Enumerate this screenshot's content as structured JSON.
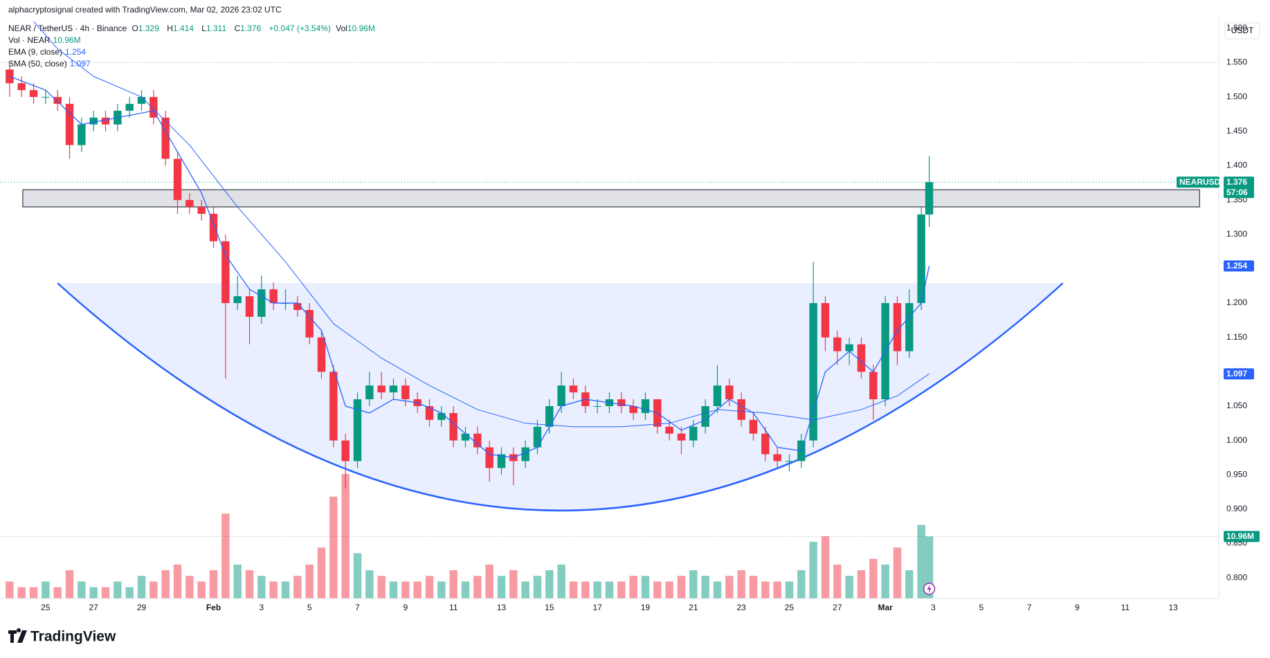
{
  "header": {
    "credit": "alphacryptosignal created with TradingView.com, Mar 02, 2026 23:02 UTC",
    "symbol": "NEAR / TetherUS · 4h · Binance",
    "ohlc": [
      {
        "k": "O",
        "v": "1.329"
      },
      {
        "k": "H",
        "v": "1.414"
      },
      {
        "k": "L",
        "v": "1.311"
      },
      {
        "k": "C",
        "v": "1.376"
      }
    ],
    "change": "+0.047 (+3.54%)",
    "vol": {
      "k": "Vol · NEAR",
      "v": "10.96M"
    },
    "vol_short": {
      "k": "Vol",
      "v": "10.96M"
    },
    "ema": {
      "k": "EMA (9, close)",
      "v": "1.254"
    },
    "sma": {
      "k": "SMA (50, close)",
      "v": "1.097"
    },
    "quote": "USDT",
    "ticker": "NEARUSDT",
    "countdown": "57:06",
    "logo": "TradingView"
  },
  "chart_data": {
    "type": "candlestick",
    "up_color": "#089981",
    "down_color": "#f23645",
    "grid": false,
    "xlim": [
      23.1,
      73.9
    ],
    "ylim": [
      0.77,
      1.615
    ],
    "vlim": [
      0,
      22
    ],
    "yticks": [
      {
        "value": 0.8,
        "label": "0.800"
      },
      {
        "value": 0.85,
        "label": "0.850"
      },
      {
        "value": 0.9,
        "label": "0.900"
      },
      {
        "value": 0.95,
        "label": "0.950"
      },
      {
        "value": 1.0,
        "label": "1.000"
      },
      {
        "value": 1.05,
        "label": "1.050"
      },
      {
        "value": 1.1,
        "label": "1.100"
      },
      {
        "value": 1.15,
        "label": "1.150"
      },
      {
        "value": 1.2,
        "label": "1.200"
      },
      {
        "value": 1.25,
        "label": "1.250"
      },
      {
        "value": 1.3,
        "label": "1.300"
      },
      {
        "value": 1.35,
        "label": "1.350"
      },
      {
        "value": 1.4,
        "label": "1.400"
      },
      {
        "value": 1.45,
        "label": "1.450"
      },
      {
        "value": 1.5,
        "label": "1.500"
      },
      {
        "value": 1.55,
        "label": "1.550"
      },
      {
        "value": 1.6,
        "label": "1.600"
      }
    ],
    "xticks": [
      25,
      27,
      29,
      {
        "value": 32,
        "label": "Feb"
      },
      {
        "value": 34,
        "label": "3"
      },
      {
        "value": 36,
        "label": "5"
      },
      {
        "value": 38,
        "label": "7"
      },
      {
        "value": 40,
        "label": "9"
      },
      {
        "value": 42,
        "label": "11"
      },
      {
        "value": 44,
        "label": "13"
      },
      {
        "value": 46,
        "label": "15"
      },
      {
        "value": 48,
        "label": "17"
      },
      {
        "value": 50,
        "label": "19"
      },
      {
        "value": 52,
        "label": "21"
      },
      {
        "value": 54,
        "label": "23"
      },
      {
        "value": 56,
        "label": "25"
      },
      {
        "value": 58,
        "label": "27"
      },
      {
        "value": 60,
        "label": "Mar"
      },
      {
        "value": 62,
        "label": "3"
      },
      {
        "value": 64,
        "label": "5"
      },
      {
        "value": 66,
        "label": "7"
      },
      {
        "value": 68,
        "label": "9"
      },
      {
        "value": 70,
        "label": "11"
      },
      {
        "value": 72,
        "label": "13"
      }
    ],
    "x": [
      23.5,
      24,
      24.5,
      25,
      25.5,
      26,
      26.5,
      27,
      27.5,
      28,
      28.5,
      29,
      29.5,
      30,
      30.5,
      31,
      31.5,
      32,
      32.5,
      33,
      33.5,
      34,
      34.5,
      35,
      35.5,
      36,
      36.5,
      37,
      37.5,
      38,
      38.5,
      39,
      39.5,
      40,
      40.5,
      41,
      41.5,
      42,
      42.5,
      43,
      43.5,
      44,
      44.5,
      45,
      45.5,
      46,
      46.5,
      47,
      47.5,
      48,
      48.5,
      49,
      49.5,
      50,
      50.5,
      51,
      51.5,
      52,
      52.5,
      53,
      53.5,
      54,
      54.5,
      55,
      55.5,
      56,
      56.5,
      57,
      57.5,
      58,
      58.5,
      59,
      59.5,
      60,
      60.5,
      61,
      61.5,
      61.83
    ],
    "ohlc": [
      [
        1.54,
        1.55,
        1.5,
        1.52
      ],
      [
        1.52,
        1.53,
        1.5,
        1.51
      ],
      [
        1.51,
        1.52,
        1.49,
        1.5
      ],
      [
        1.5,
        1.51,
        1.49,
        1.5
      ],
      [
        1.5,
        1.51,
        1.48,
        1.49
      ],
      [
        1.49,
        1.5,
        1.41,
        1.43
      ],
      [
        1.43,
        1.47,
        1.42,
        1.46
      ],
      [
        1.46,
        1.48,
        1.45,
        1.47
      ],
      [
        1.47,
        1.48,
        1.45,
        1.46
      ],
      [
        1.46,
        1.49,
        1.45,
        1.48
      ],
      [
        1.48,
        1.5,
        1.47,
        1.49
      ],
      [
        1.49,
        1.51,
        1.48,
        1.5
      ],
      [
        1.5,
        1.51,
        1.46,
        1.47
      ],
      [
        1.47,
        1.48,
        1.4,
        1.41
      ],
      [
        1.41,
        1.42,
        1.33,
        1.35
      ],
      [
        1.35,
        1.36,
        1.33,
        1.34
      ],
      [
        1.34,
        1.35,
        1.32,
        1.33
      ],
      [
        1.33,
        1.34,
        1.28,
        1.29
      ],
      [
        1.29,
        1.3,
        1.09,
        1.2
      ],
      [
        1.2,
        1.24,
        1.19,
        1.21
      ],
      [
        1.21,
        1.22,
        1.14,
        1.18
      ],
      [
        1.18,
        1.24,
        1.17,
        1.22
      ],
      [
        1.22,
        1.23,
        1.19,
        1.2
      ],
      [
        1.2,
        1.22,
        1.19,
        1.2
      ],
      [
        1.2,
        1.21,
        1.18,
        1.19
      ],
      [
        1.19,
        1.2,
        1.14,
        1.15
      ],
      [
        1.15,
        1.16,
        1.09,
        1.1
      ],
      [
        1.1,
        1.11,
        0.99,
        1.0
      ],
      [
        1.0,
        1.01,
        0.93,
        0.97
      ],
      [
        0.97,
        1.07,
        0.96,
        1.06
      ],
      [
        1.06,
        1.1,
        1.05,
        1.08
      ],
      [
        1.08,
        1.1,
        1.06,
        1.07
      ],
      [
        1.07,
        1.09,
        1.06,
        1.08
      ],
      [
        1.08,
        1.09,
        1.05,
        1.06
      ],
      [
        1.06,
        1.07,
        1.04,
        1.05
      ],
      [
        1.05,
        1.06,
        1.02,
        1.03
      ],
      [
        1.03,
        1.05,
        1.02,
        1.04
      ],
      [
        1.04,
        1.05,
        0.99,
        1.0
      ],
      [
        1.0,
        1.02,
        0.99,
        1.01
      ],
      [
        1.01,
        1.02,
        0.98,
        0.99
      ],
      [
        0.99,
        1.0,
        0.94,
        0.96
      ],
      [
        0.96,
        0.99,
        0.95,
        0.98
      ],
      [
        0.98,
        0.99,
        0.935,
        0.97
      ],
      [
        0.97,
        1.0,
        0.96,
        0.99
      ],
      [
        0.99,
        1.03,
        0.98,
        1.02
      ],
      [
        1.02,
        1.06,
        1.01,
        1.05
      ],
      [
        1.05,
        1.1,
        1.04,
        1.08
      ],
      [
        1.08,
        1.09,
        1.06,
        1.07
      ],
      [
        1.07,
        1.08,
        1.04,
        1.05
      ],
      [
        1.05,
        1.06,
        1.04,
        1.05
      ],
      [
        1.05,
        1.07,
        1.04,
        1.06
      ],
      [
        1.06,
        1.07,
        1.04,
        1.05
      ],
      [
        1.05,
        1.06,
        1.03,
        1.04
      ],
      [
        1.04,
        1.07,
        1.03,
        1.06
      ],
      [
        1.06,
        1.06,
        1.01,
        1.02
      ],
      [
        1.02,
        1.03,
        1.0,
        1.01
      ],
      [
        1.01,
        1.02,
        0.98,
        1.0
      ],
      [
        1.0,
        1.03,
        0.99,
        1.02
      ],
      [
        1.02,
        1.06,
        1.01,
        1.05
      ],
      [
        1.05,
        1.11,
        1.04,
        1.08
      ],
      [
        1.08,
        1.09,
        1.05,
        1.06
      ],
      [
        1.06,
        1.07,
        1.02,
        1.03
      ],
      [
        1.03,
        1.04,
        1.0,
        1.01
      ],
      [
        1.01,
        1.02,
        0.97,
        0.98
      ],
      [
        0.98,
        0.99,
        0.96,
        0.97
      ],
      [
        0.97,
        0.98,
        0.955,
        0.97
      ],
      [
        0.97,
        1.01,
        0.96,
        1.0
      ],
      [
        1.0,
        1.26,
        0.99,
        1.2
      ],
      [
        1.2,
        1.21,
        1.13,
        1.15
      ],
      [
        1.15,
        1.16,
        1.11,
        1.13
      ],
      [
        1.13,
        1.15,
        1.11,
        1.14
      ],
      [
        1.14,
        1.15,
        1.09,
        1.1
      ],
      [
        1.1,
        1.11,
        1.03,
        1.06
      ],
      [
        1.06,
        1.21,
        1.05,
        1.2
      ],
      [
        1.2,
        1.21,
        1.11,
        1.13
      ],
      [
        1.13,
        1.22,
        1.12,
        1.2
      ],
      [
        1.2,
        1.34,
        1.19,
        1.329
      ],
      [
        1.329,
        1.414,
        1.311,
        1.376
      ]
    ],
    "volume": [
      3,
      2,
      2,
      3,
      2,
      5,
      3,
      2,
      2,
      3,
      2,
      4,
      3,
      5,
      6,
      4,
      3,
      5,
      15,
      6,
      5,
      4,
      3,
      3,
      4,
      6,
      9,
      18,
      22,
      8,
      5,
      4,
      3,
      3,
      3,
      4,
      3,
      5,
      3,
      4,
      6,
      4,
      5,
      3,
      4,
      5,
      6,
      3,
      3,
      3,
      3,
      3,
      4,
      4,
      3,
      3,
      4,
      5,
      4,
      3,
      4,
      5,
      4,
      3,
      3,
      3,
      5,
      10,
      11,
      6,
      4,
      5,
      7,
      6,
      9,
      5,
      13,
      10.96
    ],
    "ema": {
      "color": "#2962ff",
      "x": [
        23.5,
        25,
        26.5,
        28,
        29.5,
        30.5,
        31.5,
        32.5,
        33.5,
        34.5,
        35.5,
        36.5,
        37.5,
        38.5,
        39.5,
        40.5,
        41.5,
        42.5,
        43.5,
        44.5,
        45.5,
        46.5,
        47.5,
        48.5,
        49.5,
        50.5,
        51.5,
        52.5,
        53.5,
        54.5,
        55.5,
        56.5,
        57.5,
        58.5,
        59.5,
        60.5,
        61.5,
        61.83
      ],
      "values": [
        1.53,
        1.51,
        1.46,
        1.47,
        1.48,
        1.42,
        1.36,
        1.27,
        1.22,
        1.2,
        1.2,
        1.16,
        1.05,
        1.04,
        1.06,
        1.055,
        1.04,
        1.01,
        0.98,
        0.975,
        0.99,
        1.05,
        1.06,
        1.055,
        1.05,
        1.04,
        1.015,
        1.03,
        1.06,
        1.04,
        0.99,
        0.985,
        1.1,
        1.13,
        1.1,
        1.16,
        1.2,
        1.254
      ]
    },
    "sma": {
      "color": "#2962ff",
      "x": [
        24.5,
        25.5,
        27,
        29,
        31,
        33,
        35,
        37,
        39,
        41,
        43,
        45,
        47,
        49,
        51,
        53,
        55,
        57,
        59,
        60.5,
        61.83
      ],
      "values": [
        1.61,
        1.57,
        1.53,
        1.5,
        1.43,
        1.34,
        1.26,
        1.17,
        1.12,
        1.08,
        1.045,
        1.025,
        1.02,
        1.02,
        1.025,
        1.045,
        1.04,
        1.03,
        1.045,
        1.065,
        1.097
      ]
    },
    "zone": {
      "x": [
        24.05,
        73.1
      ],
      "y": [
        1.34,
        1.365
      ],
      "color": "#d1d4dc"
    },
    "cup": {
      "x": [
        25.5,
        46.5,
        67.4
      ],
      "y": [
        1.229,
        0.898,
        1.229
      ],
      "color": "#2962ff"
    },
    "hline": 1.55,
    "last_price": 1.376,
    "last_volume": 10.96
  }
}
